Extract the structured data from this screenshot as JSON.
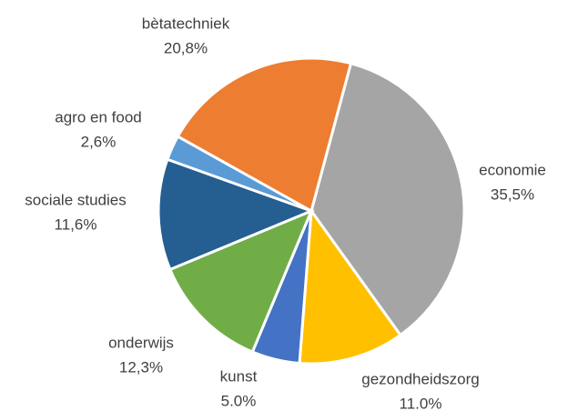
{
  "chart_data": {
    "type": "pie",
    "categories": [
      "economie",
      "gezondheidszorg",
      "kunst",
      "onderwijs",
      "sociale studies",
      "agro en food",
      "bètatechniek"
    ],
    "values": [
      35.5,
      11.0,
      5.0,
      12.3,
      11.6,
      2.6,
      20.8
    ],
    "value_labels": [
      "35,5%",
      "11.0%",
      "5.0%",
      "12,3%",
      "11,6%",
      "2,6%",
      "20,8%"
    ],
    "colors": [
      "#a5a5a5",
      "#ffc000",
      "#4472c4",
      "#70ad47",
      "#255e91",
      "#5b9bd5",
      "#ed7d31"
    ]
  }
}
